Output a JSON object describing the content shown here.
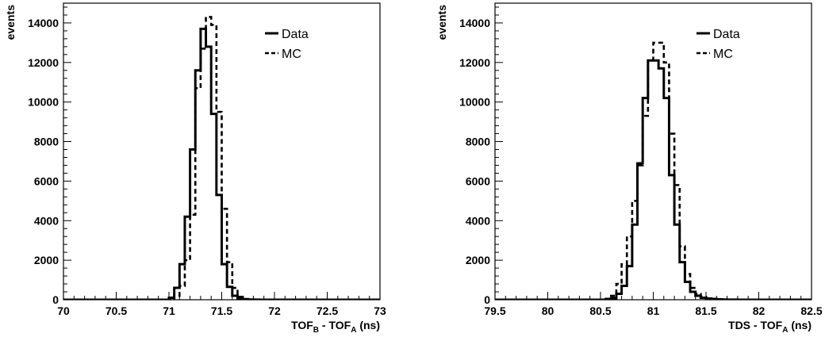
{
  "colors": {
    "data": "#000000",
    "mc": "#000000",
    "frame": "#000000",
    "background": "#ffffff"
  },
  "chart_data": [
    {
      "type": "line",
      "style": "step-histogram",
      "ylabel": "events",
      "xlabel_parts": [
        "TOF",
        "B",
        " - TOF",
        "A",
        " (ns)"
      ],
      "xlim": [
        70,
        73
      ],
      "ylim": [
        0,
        15000
      ],
      "xticks": [
        "70",
        "70.5",
        "71",
        "71.5",
        "72",
        "72.5",
        "73"
      ],
      "yticks": [
        "0",
        "2000",
        "4000",
        "6000",
        "8000",
        "10000",
        "12000",
        "14000"
      ],
      "legend_position": "top-right",
      "bin_edges": [
        70.0,
        71.0,
        71.05,
        71.1,
        71.15,
        71.2,
        71.25,
        71.3,
        71.35,
        71.4,
        71.45,
        71.5,
        71.55,
        71.6,
        71.65,
        71.7,
        71.75,
        71.8,
        71.85,
        71.9,
        71.95,
        73.0
      ],
      "series": [
        {
          "name": "Data",
          "dash": "solid",
          "values": [
            0,
            100,
            600,
            1800,
            4200,
            7600,
            11600,
            13700,
            12800,
            9400,
            5300,
            1800,
            650,
            200,
            60,
            20,
            8,
            3,
            1,
            0,
            0
          ]
        },
        {
          "name": "MC",
          "dash": "dashed",
          "values": [
            0,
            0,
            200,
            700,
            2000,
            4300,
            10700,
            12700,
            14300,
            13900,
            9500,
            4600,
            1900,
            600,
            150,
            40,
            10,
            3,
            1,
            0,
            0
          ]
        }
      ]
    },
    {
      "type": "line",
      "style": "step-histogram",
      "ylabel": "events",
      "xlabel_parts": [
        "TDS - TOF",
        "A",
        " (ns)"
      ],
      "xlim": [
        79.5,
        82.5
      ],
      "ylim": [
        0,
        15000
      ],
      "xticks": [
        "79.5",
        "80",
        "80.5",
        "81",
        "81.5",
        "82",
        "82.5"
      ],
      "yticks": [
        "0",
        "2000",
        "4000",
        "6000",
        "8000",
        "10000",
        "12000",
        "14000"
      ],
      "legend_position": "top-right",
      "bin_edges": [
        79.5,
        80.55,
        80.6,
        80.65,
        80.7,
        80.75,
        80.8,
        80.85,
        80.9,
        80.95,
        81.0,
        81.05,
        81.1,
        81.15,
        81.2,
        81.25,
        81.3,
        81.35,
        81.4,
        81.45,
        81.5,
        81.55,
        81.6,
        81.65,
        81.7,
        81.75,
        81.8,
        81.85,
        81.9,
        81.95,
        82.0,
        82.05,
        82.5
      ],
      "series": [
        {
          "name": "Data",
          "dash": "solid",
          "values": [
            0,
            20,
            80,
            300,
            700,
            1700,
            3800,
            6900,
            10200,
            12100,
            12100,
            11700,
            10200,
            6300,
            3800,
            1900,
            900,
            400,
            200,
            100,
            60,
            40,
            20,
            10,
            5,
            3,
            2,
            1,
            0,
            0,
            0,
            0
          ]
        },
        {
          "name": "MC",
          "dash": "dashed",
          "values": [
            0,
            50,
            200,
            800,
            1800,
            3200,
            5000,
            6800,
            9300,
            12100,
            13000,
            13000,
            12000,
            8400,
            5800,
            2700,
            1300,
            600,
            300,
            150,
            80,
            40,
            20,
            10,
            5,
            2,
            1,
            0,
            0,
            0,
            0,
            0
          ]
        }
      ]
    }
  ]
}
